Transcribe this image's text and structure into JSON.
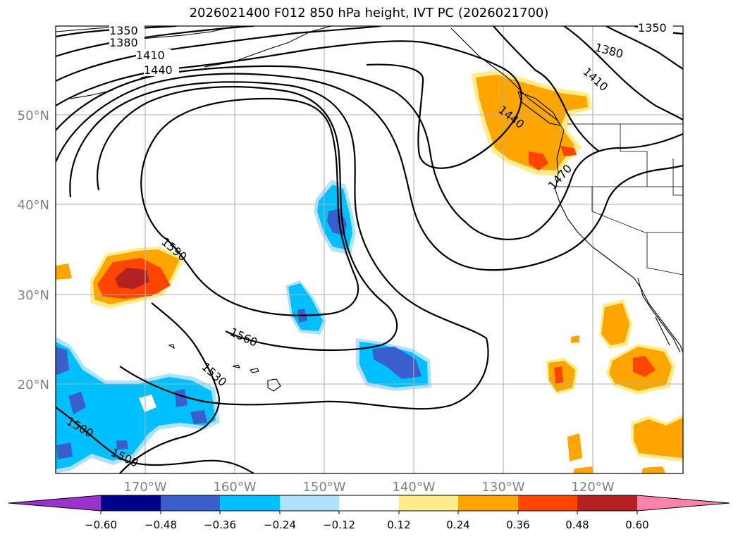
{
  "title": "2026021400 F012 850 hPa height, IVT PC (2026021700)",
  "latitude_labels": [
    "50°N",
    "40°N",
    "30°N",
    "20°N"
  ],
  "longitude_labels": [
    "170°W",
    "160°W",
    "150°W",
    "140°W",
    "130°W",
    "120°W"
  ],
  "contour_labels": [
    "1350",
    "1380",
    "1410",
    "1440",
    "1350",
    "1380",
    "1410",
    "1440",
    "1470",
    "1590",
    "1560",
    "1530",
    "1500",
    "1500"
  ],
  "colorbar": {
    "tick_labels": [
      "−0.60",
      "−0.48",
      "−0.36",
      "−0.24",
      "−0.12",
      "0.12",
      "0.24",
      "0.36",
      "0.48",
      "0.60"
    ],
    "colors": [
      "#9a32cd",
      "#00008b",
      "#3a5fcd",
      "#00bfff",
      "#b0e2ff",
      "#ffffff",
      "#ffec8b",
      "#ffa500",
      "#ff4500",
      "#b22222",
      "#ff82ab"
    ]
  },
  "colors": {
    "negative_strong": "#3a5fcd",
    "negative": "#00bfff",
    "negative_weak": "#b0e2ff",
    "positive_weak": "#ffec8b",
    "positive": "#ffa500",
    "positive_strong": "#ff4500",
    "positive_max": "#b22222"
  }
}
